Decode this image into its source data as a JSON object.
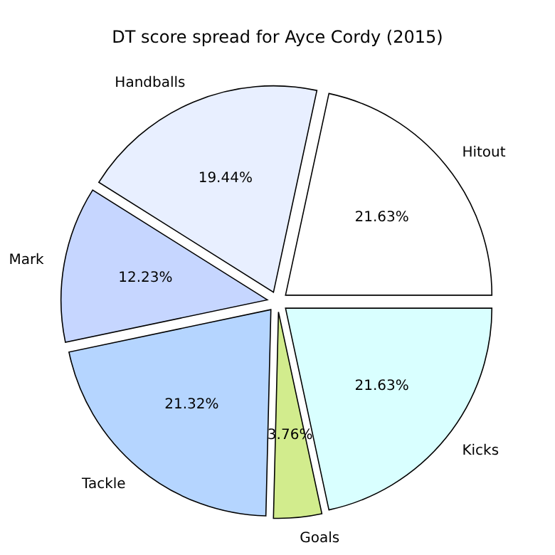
{
  "chart_data": {
    "type": "pie",
    "title": "DT score spread for Ayce Cordy (2015)",
    "categories": [
      "Hitout",
      "Handballs",
      "Mark",
      "Tackle",
      "Goals",
      "Kicks"
    ],
    "values": [
      21.63,
      19.44,
      12.23,
      21.32,
      3.76,
      21.63
    ],
    "colors": [
      "#ffffff",
      "#e8efff",
      "#c6d6ff",
      "#b5d5ff",
      "#d2ec8d",
      "#d9ffff"
    ],
    "value_labels": [
      "21.63%",
      "19.44%",
      "12.23%",
      "21.32%",
      "3.76%",
      "21.63%"
    ]
  }
}
